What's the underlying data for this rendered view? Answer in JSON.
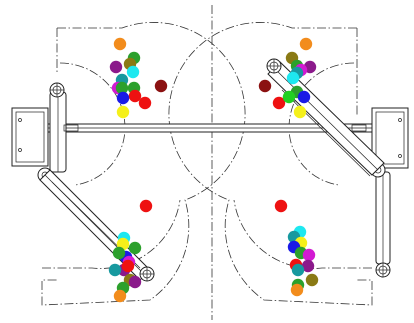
{
  "colors": {
    "line": "#222222",
    "centerline": "#333333",
    "background": "#ffffff"
  },
  "marker_palette": {
    "orange": "#f28c1c",
    "green": "#2ca02c",
    "teal": "#17999f",
    "cyan": "#1ee8f0",
    "magenta": "#d21ad2",
    "purple": "#8b1a8b",
    "blue": "#1a1ae6",
    "red": "#ee1111",
    "dark_red": "#8b1111",
    "yellow": "#f5f01a",
    "olive": "#8a7a14",
    "lime": "#22d022"
  },
  "robots": {
    "left": {
      "markers_upper": [
        "orange",
        "green",
        "olive",
        "purple",
        "cyan",
        "teal",
        "green",
        "magenta",
        "red",
        "green",
        "dark_red",
        "blue",
        "red",
        "yellow"
      ],
      "markers_lower": [
        "red",
        "cyan",
        "yellow",
        "green",
        "blue",
        "green",
        "magenta",
        "purple",
        "red",
        "teal",
        "olive",
        "green",
        "orange",
        "purple"
      ]
    },
    "right": {
      "markers_upper": [
        "orange",
        "olive",
        "green",
        "purple",
        "magenta",
        "teal",
        "cyan",
        "dark_red",
        "green",
        "red",
        "blue",
        "lime",
        "yellow"
      ],
      "markers_lower": [
        "red",
        "cyan",
        "teal",
        "yellow",
        "blue",
        "green",
        "magenta",
        "red",
        "purple",
        "teal",
        "olive",
        "green",
        "orange"
      ]
    }
  }
}
